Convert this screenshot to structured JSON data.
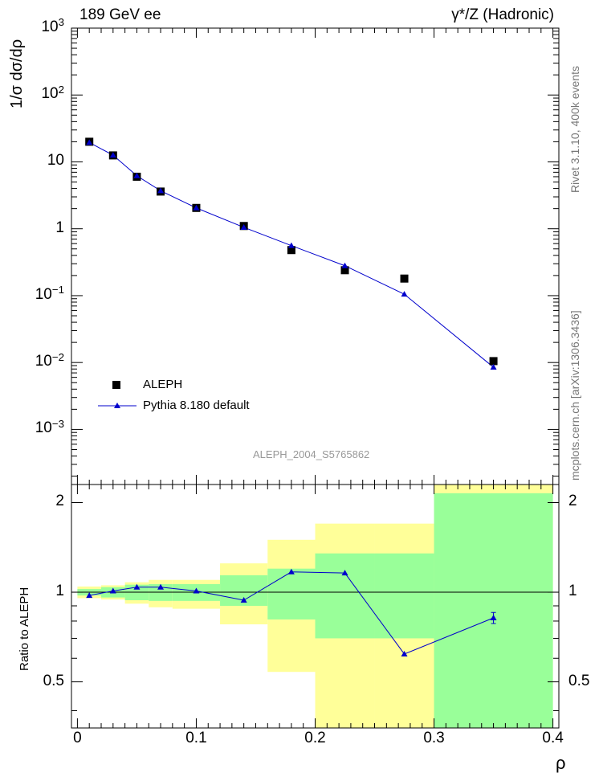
{
  "header": {
    "left": "189 GeV ee",
    "right": "γ*/Z (Hadronic)"
  },
  "side": {
    "rivet": "Rivet 3.1.10,  400k events",
    "mcplots": "mcplots.cern.ch [arXiv:1306.3436]"
  },
  "colors": {
    "data": "#000000",
    "mc": "#0000cc",
    "band_inner": "#99ff99",
    "band_outer": "#ffff99"
  },
  "chart_data": [
    {
      "type": "scatter",
      "panel": "main",
      "ylabel": "1/σ  dσ/dρ",
      "xlabel": "ρ",
      "yscale": "log",
      "ylim": [
        0.00015,
        1000
      ],
      "xlim": [
        -0.005,
        0.405
      ],
      "y_tick_labels": [
        "10^-3",
        "10^-2",
        "10^-1",
        "1",
        "10",
        "10^2",
        "10^3"
      ],
      "watermark": "ALEPH_2004_S5765862",
      "legend_position": "bottom-left",
      "series": [
        {
          "name": "ALEPH",
          "style": "markers",
          "x": [
            0.01,
            0.03,
            0.05,
            0.07,
            0.1,
            0.14,
            0.18,
            0.225,
            0.275,
            0.35
          ],
          "values": [
            20.0,
            12.5,
            6.0,
            3.6,
            2.05,
            1.1,
            0.48,
            0.24,
            0.18,
            0.0105
          ]
        },
        {
          "name": "Pythia 8.180 default",
          "style": "line+triangles",
          "x": [
            0.01,
            0.03,
            0.05,
            0.07,
            0.1,
            0.14,
            0.18,
            0.225,
            0.275,
            0.35
          ],
          "values": [
            19.5,
            12.6,
            6.2,
            3.7,
            2.05,
            1.05,
            0.56,
            0.28,
            0.105,
            0.0085
          ]
        }
      ]
    },
    {
      "type": "line",
      "panel": "ratio",
      "ylabel": "Ratio to ALEPH",
      "xlabel": "ρ",
      "xlim": [
        -0.005,
        0.405
      ],
      "ylim": [
        0.35,
        2.3
      ],
      "x_tick_labels": [
        "0",
        "0.1",
        "0.2",
        "0.3",
        "0.4"
      ],
      "y_tick_labels": [
        "0.5",
        "1",
        "2"
      ],
      "reference_line": 1,
      "bands": [
        {
          "x0": 0.0,
          "x1": 0.02,
          "inner": [
            0.975,
            1.025
          ],
          "outer": [
            0.955,
            1.045
          ]
        },
        {
          "x0": 0.02,
          "x1": 0.04,
          "inner": [
            0.96,
            1.04
          ],
          "outer": [
            0.945,
            1.055
          ]
        },
        {
          "x0": 0.04,
          "x1": 0.06,
          "inner": [
            0.94,
            1.06
          ],
          "outer": [
            0.915,
            1.08
          ]
        },
        {
          "x0": 0.06,
          "x1": 0.08,
          "inner": [
            0.935,
            1.065
          ],
          "outer": [
            0.89,
            1.1
          ]
        },
        {
          "x0": 0.08,
          "x1": 0.12,
          "inner": [
            0.935,
            1.065
          ],
          "outer": [
            0.88,
            1.1
          ]
        },
        {
          "x0": 0.12,
          "x1": 0.16,
          "inner": [
            0.9,
            1.14
          ],
          "outer": [
            0.78,
            1.25
          ]
        },
        {
          "x0": 0.16,
          "x1": 0.2,
          "inner": [
            0.81,
            1.2
          ],
          "outer": [
            0.54,
            1.5
          ]
        },
        {
          "x0": 0.2,
          "x1": 0.25,
          "inner": [
            0.7,
            1.35
          ],
          "outer": [
            0.34,
            1.7
          ]
        },
        {
          "x0": 0.25,
          "x1": 0.3,
          "inner": [
            0.7,
            1.35
          ],
          "outer": [
            0.34,
            1.7
          ]
        },
        {
          "x0": 0.3,
          "x1": 0.4,
          "inner": [
            0.34,
            2.15
          ],
          "outer": [
            0.34,
            2.35
          ]
        }
      ],
      "series": [
        {
          "name": "Pythia 8.180 default",
          "x": [
            0.01,
            0.03,
            0.05,
            0.07,
            0.1,
            0.14,
            0.18,
            0.225,
            0.275,
            0.35
          ],
          "values": [
            0.975,
            1.01,
            1.04,
            1.04,
            1.01,
            0.94,
            1.17,
            1.16,
            0.62,
            0.82
          ],
          "errors": [
            0.005,
            0.005,
            0.005,
            0.005,
            0.005,
            0.005,
            0.008,
            0.01,
            0.01,
            0.035
          ]
        }
      ]
    }
  ]
}
